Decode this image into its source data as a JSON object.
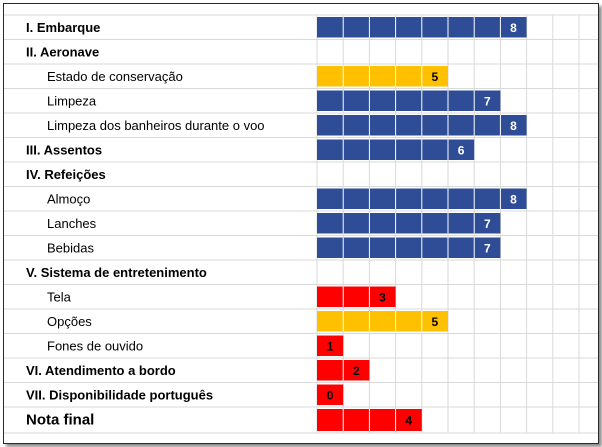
{
  "chart_data": {
    "type": "bar",
    "orientation": "horizontal",
    "scale_max": 10,
    "colors": {
      "high": "#2e4d96",
      "mid": "#ffc000",
      "low": "#ff0000",
      "value_text_on_high": "#ffffff",
      "value_text_on_mid": "#000000",
      "value_text_on_low": "#000000"
    },
    "rows": [
      {
        "label": "I. Embarque",
        "kind": "section",
        "value": 8,
        "color": "high"
      },
      {
        "label": "II. Aeronave",
        "kind": "section",
        "value": null,
        "color": null
      },
      {
        "label": "Estado de conservação",
        "kind": "item",
        "value": 5,
        "color": "mid"
      },
      {
        "label": "Limpeza",
        "kind": "item",
        "value": 7,
        "color": "high"
      },
      {
        "label": "Limpeza dos banheiros durante o voo",
        "kind": "item",
        "value": 8,
        "color": "high"
      },
      {
        "label": "III. Assentos",
        "kind": "section",
        "value": 6,
        "color": "high"
      },
      {
        "label": "IV. Refeições",
        "kind": "section",
        "value": null,
        "color": null
      },
      {
        "label": "Almoço",
        "kind": "item",
        "value": 8,
        "color": "high"
      },
      {
        "label": "Lanches",
        "kind": "item",
        "value": 7,
        "color": "high"
      },
      {
        "label": "Bebidas",
        "kind": "item",
        "value": 7,
        "color": "high"
      },
      {
        "label": "V. Sistema de entretenimento",
        "kind": "section",
        "value": null,
        "color": null
      },
      {
        "label": "Tela",
        "kind": "item",
        "value": 3,
        "color": "low"
      },
      {
        "label": "Opções",
        "kind": "item",
        "value": 5,
        "color": "mid"
      },
      {
        "label": "Fones de ouvido",
        "kind": "item",
        "value": 1,
        "color": "low"
      },
      {
        "label": "VI. Atendimento a bordo",
        "kind": "section",
        "value": 2,
        "color": "low"
      },
      {
        "label": "VII. Disponibilidade português",
        "kind": "section",
        "value": 0,
        "color": "low"
      },
      {
        "label": "Nota final",
        "kind": "final",
        "value": 4,
        "color": "low"
      }
    ]
  }
}
